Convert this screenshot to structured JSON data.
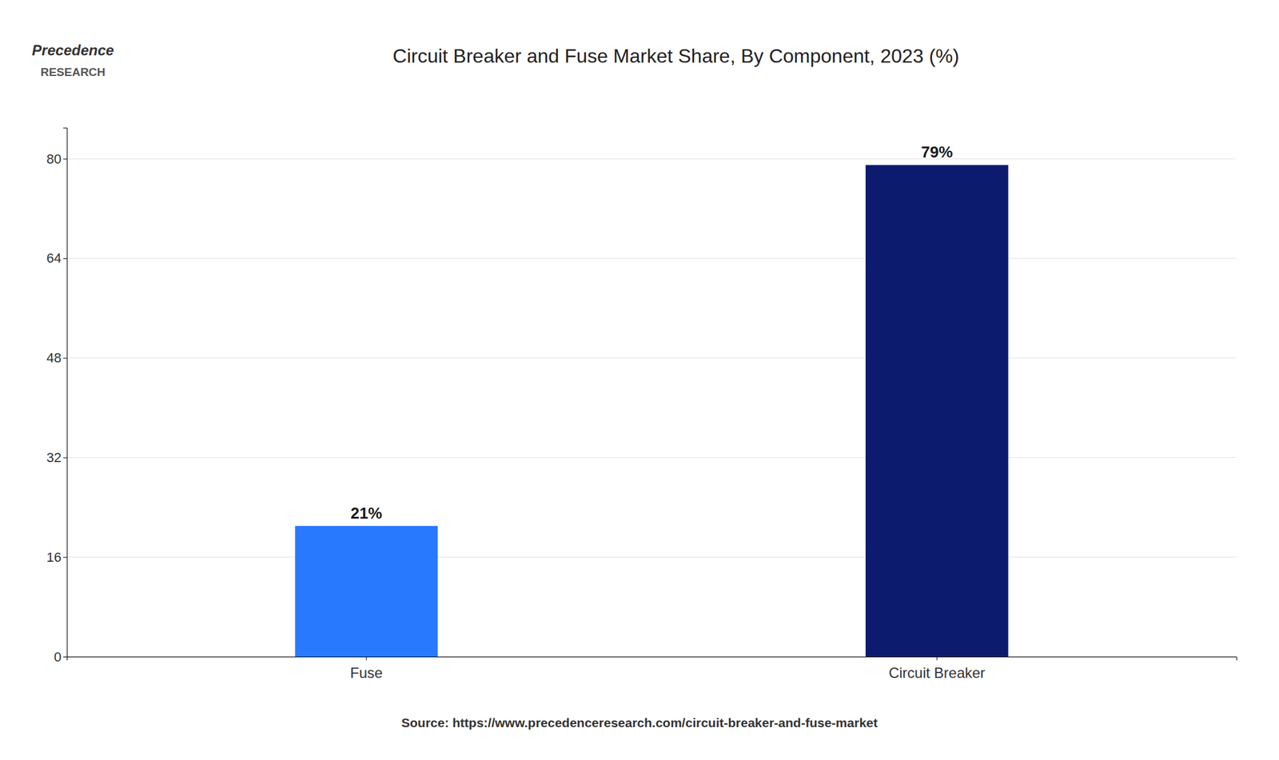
{
  "chart_data": {
    "type": "bar",
    "title": "Circuit Breaker and Fuse Market Share, By Component, 2023 (%)",
    "categories": [
      "Fuse",
      "Circuit Breaker"
    ],
    "values": [
      21,
      79
    ],
    "value_labels": [
      "21%",
      "79%"
    ],
    "colors": [
      "#2979FF",
      "#0D1B6E"
    ],
    "ylim": [
      0,
      85
    ],
    "yticks": [
      0,
      16,
      32,
      48,
      64,
      80
    ],
    "grid": true,
    "data_labels": true,
    "annotations": [
      "Precedence",
      "RESEARCH",
      "Source: https://www.precedenceresearch.com/circuit-breaker-and-fuse-market"
    ]
  }
}
